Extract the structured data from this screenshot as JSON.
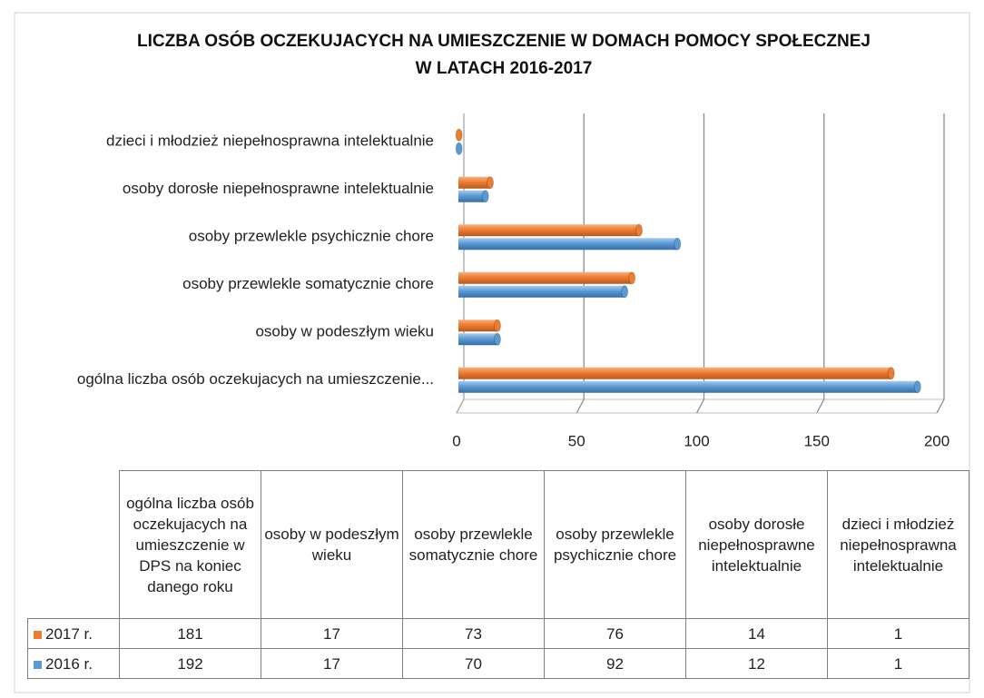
{
  "chart_data": {
    "type": "bar",
    "orientation": "horizontal",
    "title": [
      "LICZBA OSÓB OCZEKUJACYCH NA UMIESZCZENIE W DOMACH POMOCY SPOŁECZNEJ",
      "W LATACH 2016-2017"
    ],
    "categories": [
      "ogólna liczba osób oczekujacych na umieszczenie...",
      "osoby w podeszłym wieku",
      "osoby przewlekle somatycznie chore",
      "osoby przewlekle psychicznie chore",
      "osoby dorosłe niepełnosprawne intelektualnie",
      "dzieci i młodzież niepełnosprawna intelektualnie"
    ],
    "table_headers": [
      "ogólna liczba osób oczekujacych na umieszczenie w DPS na koniec danego roku",
      "osoby w podeszłym wieku",
      "osoby przewlekle somatycznie chore",
      "osoby przewlekle psychicznie chore",
      "osoby dorosłe niepełnosprawne intelektualnie",
      "dzieci i młodzież niepełnosprawna intelektualnie"
    ],
    "series": [
      {
        "name": "2017 r.",
        "color": "#ed7d31",
        "values": [
          181,
          17,
          73,
          76,
          14,
          1
        ]
      },
      {
        "name": "2016 r.",
        "color": "#5b9bd5",
        "values": [
          192,
          17,
          70,
          92,
          12,
          1
        ]
      }
    ],
    "xlim": [
      0,
      200
    ],
    "xticks": [
      0,
      50,
      100,
      150,
      200
    ],
    "grid": true
  }
}
